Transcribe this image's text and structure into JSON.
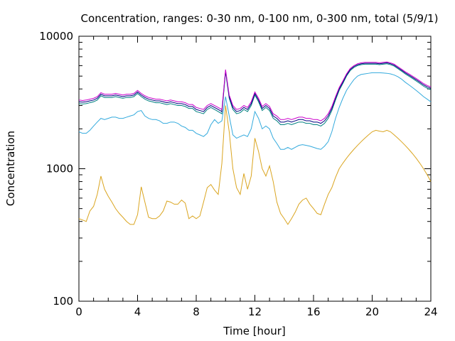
{
  "chart_data": {
    "type": "line",
    "title": "Concentration, ranges: 0-30 nm, 0-100 nm, 0-300 nm, total (5/9/1)",
    "xlabel": "Time [hour]",
    "ylabel": "Concentration",
    "xlim": [
      0,
      24
    ],
    "ylim": [
      100,
      10000
    ],
    "yscale": "log",
    "grid": false,
    "xticks": [
      0,
      4,
      8,
      12,
      16,
      20,
      24
    ],
    "xtick_labels": [
      "0",
      "4",
      "8",
      "12",
      "16",
      "20",
      "24"
    ],
    "yticks": [
      100,
      1000,
      10000
    ],
    "ytick_labels": [
      "100",
      "1000",
      "10000"
    ],
    "x": [
      0,
      0.25,
      0.5,
      0.75,
      1,
      1.25,
      1.5,
      1.75,
      2,
      2.25,
      2.5,
      2.75,
      3,
      3.25,
      3.5,
      3.75,
      4,
      4.25,
      4.5,
      4.75,
      5,
      5.25,
      5.5,
      5.75,
      6,
      6.25,
      6.5,
      6.75,
      7,
      7.25,
      7.5,
      7.75,
      8,
      8.25,
      8.5,
      8.75,
      9,
      9.25,
      9.5,
      9.75,
      10,
      10.25,
      10.5,
      10.75,
      11,
      11.25,
      11.5,
      11.75,
      12,
      12.25,
      12.5,
      12.75,
      13,
      13.25,
      13.5,
      13.75,
      14,
      14.25,
      14.5,
      14.75,
      15,
      15.25,
      15.5,
      15.75,
      16,
      16.25,
      16.5,
      16.75,
      17,
      17.25,
      17.5,
      17.75,
      18,
      18.25,
      18.5,
      18.75,
      19,
      19.25,
      19.5,
      19.75,
      20,
      20.25,
      20.5,
      20.75,
      21,
      21.25,
      21.5,
      21.75,
      22,
      22.25,
      22.5,
      22.75,
      23,
      23.25,
      23.5,
      23.75,
      24
    ],
    "series": [
      {
        "color": "#daa520",
        "values": [
          420,
          410,
          400,
          480,
          520,
          640,
          880,
          700,
          620,
          560,
          500,
          460,
          430,
          400,
          380,
          380,
          450,
          730,
          560,
          430,
          420,
          420,
          440,
          480,
          570,
          560,
          540,
          540,
          580,
          550,
          420,
          440,
          420,
          440,
          560,
          720,
          760,
          690,
          640,
          1100,
          3000,
          1900,
          1000,
          720,
          640,
          920,
          700,
          880,
          1700,
          1350,
          1000,
          880,
          1050,
          800,
          560,
          460,
          420,
          380,
          420,
          470,
          540,
          580,
          600,
          540,
          500,
          460,
          450,
          540,
          640,
          720,
          860,
          1000,
          1100,
          1200,
          1300,
          1400,
          1500,
          1600,
          1700,
          1800,
          1900,
          1950,
          1920,
          1900,
          1950,
          1900,
          1800,
          1700,
          1600,
          1500,
          1400,
          1300,
          1200,
          1100,
          1000,
          900,
          800
        ]
      },
      {
        "color": "#33aadd",
        "values": [
          1900,
          1850,
          1850,
          1950,
          2100,
          2250,
          2400,
          2350,
          2400,
          2450,
          2450,
          2400,
          2400,
          2450,
          2500,
          2550,
          2700,
          2750,
          2500,
          2400,
          2350,
          2350,
          2300,
          2200,
          2200,
          2250,
          2250,
          2200,
          2100,
          2050,
          1950,
          1950,
          1850,
          1800,
          1750,
          1850,
          2150,
          2350,
          2200,
          2300,
          3500,
          2500,
          1800,
          1700,
          1750,
          1800,
          1750,
          2000,
          2700,
          2400,
          2000,
          2100,
          2000,
          1700,
          1550,
          1400,
          1400,
          1450,
          1400,
          1450,
          1500,
          1520,
          1500,
          1480,
          1450,
          1420,
          1400,
          1480,
          1600,
          1900,
          2400,
          2900,
          3400,
          3900,
          4300,
          4700,
          5000,
          5150,
          5200,
          5250,
          5300,
          5300,
          5300,
          5280,
          5250,
          5200,
          5100,
          4950,
          4750,
          4500,
          4300,
          4100,
          3900,
          3700,
          3500,
          3350,
          3200
        ]
      },
      {
        "color": "#008080",
        "values": [
          3100,
          3080,
          3100,
          3150,
          3200,
          3300,
          3550,
          3450,
          3450,
          3450,
          3500,
          3450,
          3400,
          3450,
          3450,
          3500,
          3700,
          3500,
          3350,
          3250,
          3200,
          3150,
          3150,
          3100,
          3050,
          3100,
          3050,
          3000,
          3000,
          2950,
          2850,
          2850,
          2700,
          2650,
          2600,
          2800,
          2900,
          2800,
          2700,
          2600,
          5400,
          3400,
          2800,
          2600,
          2650,
          2800,
          2700,
          3000,
          3600,
          3200,
          2750,
          2900,
          2750,
          2400,
          2300,
          2150,
          2150,
          2200,
          2150,
          2200,
          2250,
          2250,
          2200,
          2200,
          2150,
          2150,
          2100,
          2200,
          2400,
          2750,
          3300,
          3900,
          4400,
          5000,
          5500,
          5800,
          6000,
          6100,
          6150,
          6150,
          6150,
          6150,
          6100,
          6150,
          6200,
          6100,
          5950,
          5700,
          5450,
          5200,
          5000,
          4800,
          4600,
          4400,
          4200,
          4050,
          3950
        ]
      },
      {
        "color": "#000080",
        "values": [
          3200,
          3180,
          3200,
          3250,
          3300,
          3400,
          3650,
          3550,
          3550,
          3550,
          3600,
          3550,
          3500,
          3550,
          3550,
          3600,
          3800,
          3600,
          3450,
          3350,
          3300,
          3250,
          3250,
          3200,
          3150,
          3200,
          3150,
          3100,
          3100,
          3050,
          2950,
          2950,
          2800,
          2750,
          2700,
          2900,
          3000,
          2900,
          2800,
          2700,
          5500,
          3500,
          2900,
          2700,
          2750,
          2900,
          2800,
          3100,
          3700,
          3300,
          2850,
          3000,
          2850,
          2500,
          2400,
          2250,
          2250,
          2300,
          2250,
          2300,
          2350,
          2350,
          2300,
          2300,
          2250,
          2250,
          2200,
          2300,
          2500,
          2850,
          3400,
          4000,
          4500,
          5100,
          5600,
          5900,
          6100,
          6200,
          6250,
          6250,
          6250,
          6250,
          6200,
          6250,
          6300,
          6200,
          6050,
          5800,
          5550,
          5300,
          5100,
          4900,
          4700,
          4500,
          4300,
          4150,
          4050
        ]
      },
      {
        "color": "#cc00cc",
        "values": [
          3300,
          3270,
          3300,
          3350,
          3400,
          3500,
          3750,
          3650,
          3650,
          3650,
          3700,
          3650,
          3600,
          3650,
          3650,
          3700,
          3900,
          3700,
          3550,
          3450,
          3400,
          3350,
          3350,
          3300,
          3250,
          3300,
          3250,
          3200,
          3200,
          3150,
          3050,
          3050,
          2900,
          2850,
          2800,
          3000,
          3100,
          3000,
          2900,
          2800,
          5600,
          3600,
          3000,
          2800,
          2850,
          3000,
          2900,
          3200,
          3800,
          3400,
          2950,
          3100,
          2950,
          2600,
          2500,
          2350,
          2350,
          2400,
          2350,
          2400,
          2450,
          2450,
          2400,
          2400,
          2350,
          2350,
          2300,
          2400,
          2600,
          2950,
          3500,
          4100,
          4600,
          5200,
          5700,
          6000,
          6200,
          6300,
          6350,
          6350,
          6350,
          6350,
          6300,
          6350,
          6400,
          6300,
          6150,
          5900,
          5650,
          5400,
          5200,
          5000,
          4800,
          4600,
          4400,
          4250,
          4150
        ]
      }
    ]
  }
}
